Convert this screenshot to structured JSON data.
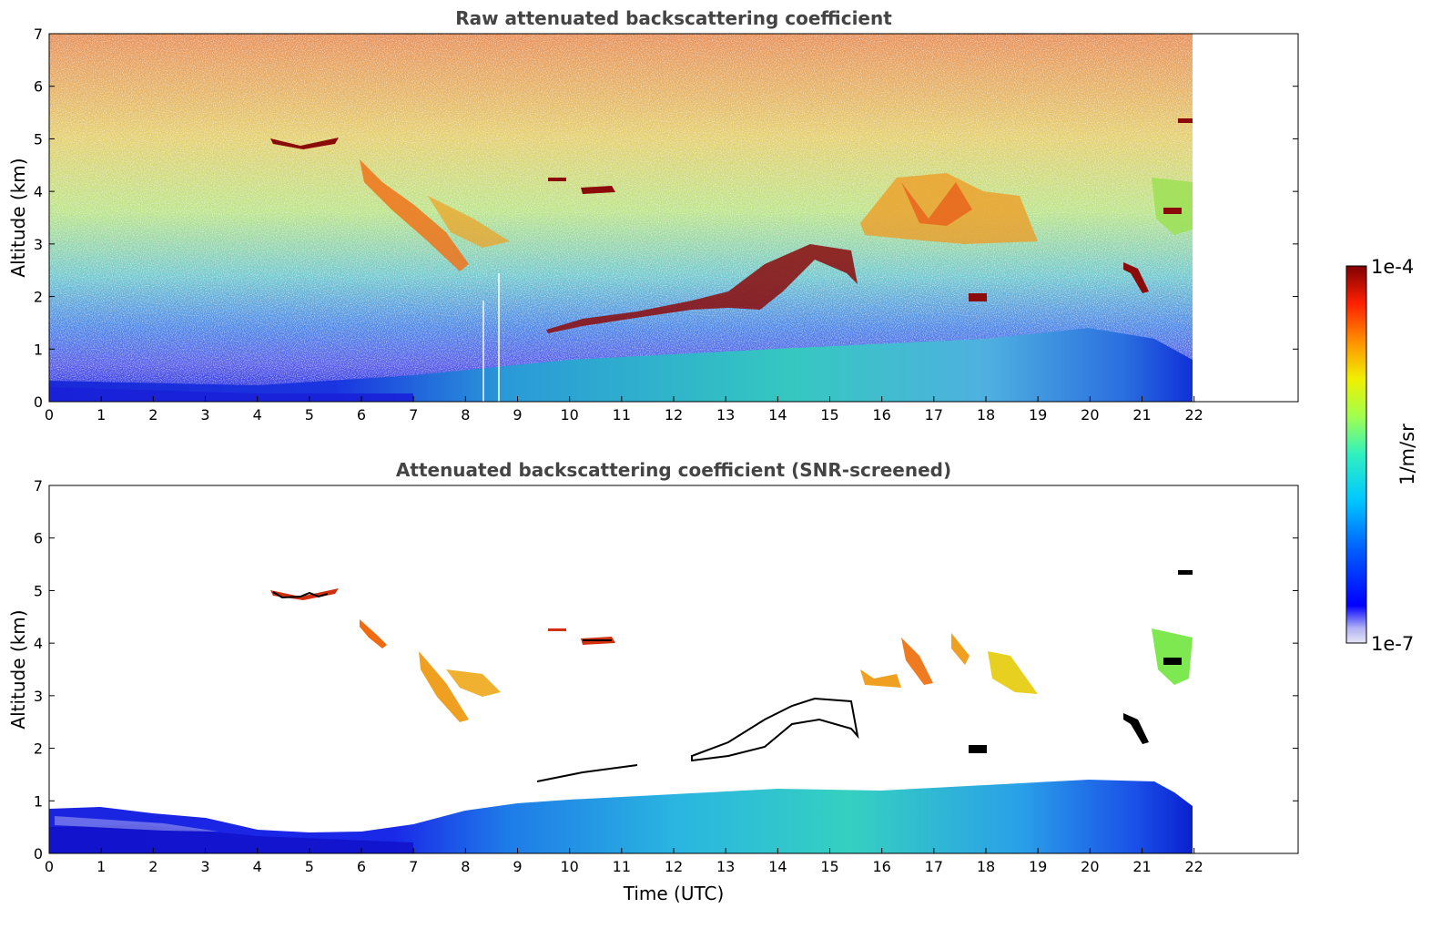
{
  "chart_data": [
    {
      "type": "heatmap",
      "title": "Raw attenuated backscattering coefficient",
      "xlabel": "",
      "ylabel": "Altitude (km)",
      "xlim": [
        0,
        24
      ],
      "ylim": [
        0,
        7
      ],
      "x_ticks": [
        "0",
        "1",
        "2",
        "3",
        "4",
        "5",
        "6",
        "7",
        "8",
        "9",
        "10",
        "11",
        "12",
        "13",
        "14",
        "15",
        "16",
        "17",
        "18",
        "19",
        "20",
        "21",
        "22"
      ],
      "y_ticks": [
        "0",
        "1",
        "2",
        "3",
        "4",
        "5",
        "6",
        "7"
      ],
      "data_extent_time": [
        0,
        22
      ],
      "background": "noisy signal: red/orange at high altitude, green/yellow mid altitude, blue-cyan near surface",
      "cloud_features": [
        {
          "t": [
            4.2,
            5.6
          ],
          "alt": [
            4.8,
            5.0
          ],
          "level": "1e-4"
        },
        {
          "t": [
            5.8,
            9.0
          ],
          "alt": [
            2.5,
            4.5
          ],
          "level": "strong (orange)"
        },
        {
          "t": [
            9.5,
            9.9
          ],
          "alt": [
            4.2,
            4.3
          ],
          "level": "1e-4"
        },
        {
          "t": [
            10.2,
            10.9
          ],
          "alt": [
            3.95,
            4.1
          ],
          "level": "1e-4"
        },
        {
          "t": [
            9.5,
            15.6
          ],
          "alt": [
            1.3,
            3.0
          ],
          "level": "1e-4"
        },
        {
          "t": [
            16.3,
            19.0
          ],
          "alt": [
            3.0,
            4.3
          ],
          "level": "strong (orange/yellow)"
        },
        {
          "t": [
            17.7,
            18.0
          ],
          "alt": [
            1.9,
            2.1
          ],
          "level": "1e-4"
        },
        {
          "t": [
            20.7,
            21.1
          ],
          "alt": [
            2.1,
            2.8
          ],
          "level": "1e-4"
        },
        {
          "t": [
            21.2,
            22.0
          ],
          "alt": [
            3.0,
            4.2
          ],
          "level": "moderate (green)"
        },
        {
          "t": [
            21.8,
            22.0
          ],
          "alt": [
            5.3,
            5.4
          ],
          "level": "1e-4"
        }
      ],
      "boundary_layer_top_km": {
        "t": [
          0,
          4,
          7,
          10,
          14,
          18,
          20,
          21.5,
          22
        ],
        "alt": [
          0.4,
          0.3,
          0.5,
          0.8,
          1.0,
          1.2,
          1.4,
          1.3,
          0.9
        ]
      }
    },
    {
      "type": "heatmap",
      "title": "Attenuated backscattering coefficient (SNR-screened)",
      "xlabel": "Time (UTC)",
      "ylabel": "Altitude (km)",
      "xlim": [
        0,
        24
      ],
      "ylim": [
        0,
        7
      ],
      "x_ticks": [
        "0",
        "1",
        "2",
        "3",
        "4",
        "5",
        "6",
        "7",
        "8",
        "9",
        "10",
        "11",
        "12",
        "13",
        "14",
        "15",
        "16",
        "17",
        "18",
        "19",
        "20",
        "21",
        "22"
      ],
      "y_ticks": [
        "0",
        "1",
        "2",
        "3",
        "4",
        "5",
        "6",
        "7"
      ],
      "data_extent_time": [
        0,
        22
      ],
      "background": "white (low-SNR pixels removed)",
      "boundary_layer_top_km": {
        "t": [
          0,
          2,
          4,
          6,
          7,
          9,
          12,
          15,
          18,
          20,
          21.5,
          22
        ],
        "alt": [
          0.8,
          0.6,
          0.45,
          0.45,
          0.6,
          0.9,
          1.05,
          1.1,
          1.3,
          1.45,
          1.3,
          0.9
        ]
      }
    }
  ],
  "colorbar": {
    "label": "1/m/sr",
    "max_label": "1e-4",
    "min_label": "1e-7",
    "scale": "log",
    "colormap": "jet"
  }
}
